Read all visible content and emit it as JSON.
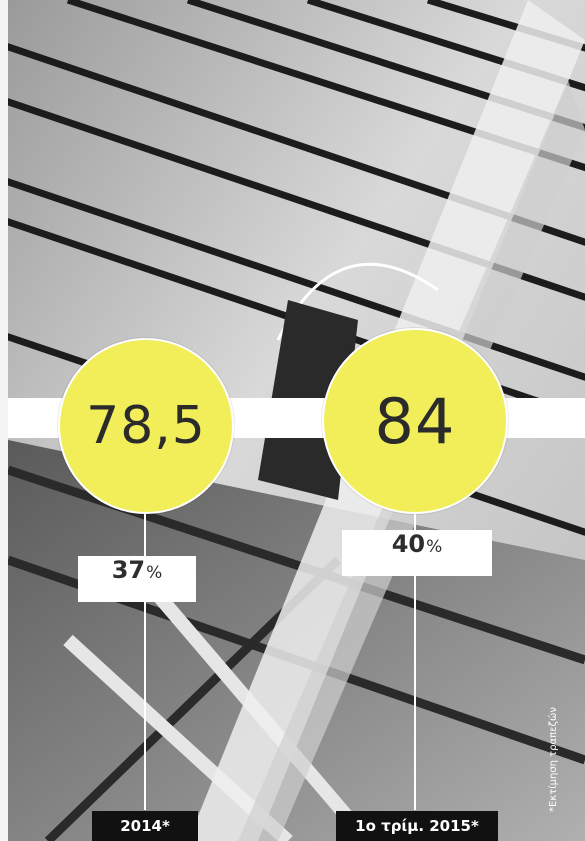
{
  "values": [
    {
      "value": "78,5",
      "percent": "37",
      "percent_symbol": "%",
      "period": "2014*"
    },
    {
      "value": "84",
      "percent": "40",
      "percent_symbol": "%",
      "period": "1ο τρίμ. 2015*"
    }
  ],
  "footnote": "*Εκτίμηση τραπεζών",
  "colors": {
    "circle": "#f2ee5a",
    "label_bg": "#ffffff",
    "year_bg": "#111111"
  }
}
